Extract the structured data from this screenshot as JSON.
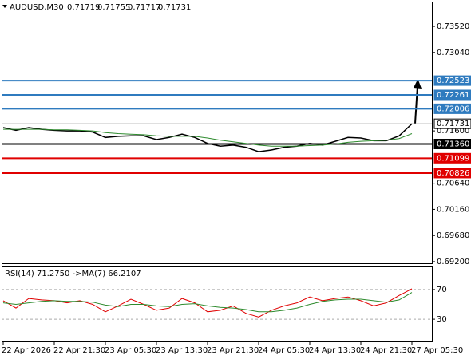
{
  "chart_data": [
    {
      "type": "line",
      "title": "AUDUSD,M30",
      "quote": [
        "0.71719",
        "0.71755",
        "0.71717",
        "0.71731"
      ],
      "categories": [
        "22 Apr 2026",
        null,
        null,
        null,
        "22 Apr 21:30",
        null,
        null,
        null,
        "23 Apr 05:30",
        null,
        null,
        null,
        "23 Apr 13:30",
        null,
        null,
        null,
        "23 Apr 21:30",
        null,
        null,
        null,
        "24 Apr 05:30",
        null,
        null,
        null,
        "24 Apr 13:30",
        null,
        null,
        null,
        "24 Apr 21:30",
        null,
        null,
        null,
        "27 Apr 05:30"
      ],
      "series": [
        {
          "name": "Close",
          "color": "#000000",
          "values": [
            0.7166,
            0.7161,
            0.7166,
            0.7163,
            0.7161,
            0.716,
            0.716,
            0.7158,
            0.7148,
            0.715,
            0.7151,
            0.7151,
            0.7144,
            0.7148,
            0.7154,
            0.7148,
            0.7137,
            0.7132,
            0.7134,
            0.713,
            0.7122,
            0.7125,
            0.713,
            0.7132,
            0.7137,
            0.7134,
            0.7141,
            0.7148,
            0.7147,
            0.7142,
            0.7142,
            0.7151,
            0.7173
          ]
        },
        {
          "name": "MA",
          "color": "#2e8b2e",
          "values": [
            0.7163,
            0.7163,
            0.7163,
            0.7163,
            0.7162,
            0.7162,
            0.7161,
            0.716,
            0.7157,
            0.7155,
            0.7154,
            0.7153,
            0.7151,
            0.715,
            0.715,
            0.715,
            0.7147,
            0.7143,
            0.714,
            0.7137,
            0.7134,
            0.7132,
            0.7132,
            0.7132,
            0.7133,
            0.7134,
            0.7136,
            0.7139,
            0.7141,
            0.7142,
            0.7143,
            0.7146,
            0.7155
          ]
        }
      ],
      "levels": [
        {
          "value": 0.72523,
          "color": "#2f7bbf"
        },
        {
          "value": 0.72261,
          "color": "#2f7bbf"
        },
        {
          "value": 0.72006,
          "color": "#2f7bbf"
        },
        {
          "value": 0.71731,
          "color": "#000000"
        },
        {
          "value": 0.7136,
          "label": "0.71360",
          "color": "#000000"
        },
        {
          "value": 0.71099,
          "color": "#e00000"
        },
        {
          "value": 0.70826,
          "color": "#e00000"
        }
      ],
      "ylim": [
        0.6917,
        0.7396
      ],
      "yticks": [
        {
          "value": 0.692,
          "label": "0.69200"
        },
        {
          "value": 0.6968,
          "label": "0.69680"
        },
        {
          "value": 0.7016,
          "label": "0.70160"
        },
        {
          "value": 0.7064,
          "label": "0.70640"
        },
        {
          "value": 0.716,
          "label": "0.71600"
        },
        {
          "value": 0.7304,
          "label": "0.73040"
        },
        {
          "value": 0.7352,
          "label": "0.73520"
        }
      ]
    },
    {
      "type": "line",
      "title": "RSI(14) 71.2750  ->MA(7) 66.2107",
      "series": [
        {
          "name": "RSI(14)",
          "color": "#e00000",
          "values": [
            55,
            45,
            58,
            56,
            55,
            52,
            55,
            50,
            40,
            48,
            57,
            50,
            42,
            45,
            58,
            52,
            40,
            42,
            48,
            38,
            33,
            42,
            48,
            52,
            60,
            55,
            58,
            60,
            55,
            48,
            52,
            62,
            71
          ]
        },
        {
          "name": "MA(7)",
          "color": "#2e8b2e",
          "values": [
            52,
            50,
            52,
            54,
            55,
            54,
            54,
            53,
            49,
            47,
            50,
            50,
            48,
            47,
            50,
            51,
            48,
            46,
            45,
            43,
            40,
            40,
            42,
            45,
            50,
            54,
            56,
            57,
            57,
            55,
            53,
            56,
            66
          ]
        }
      ],
      "ylim": [
        0,
        100
      ],
      "yticks": [
        30,
        70
      ]
    }
  ]
}
